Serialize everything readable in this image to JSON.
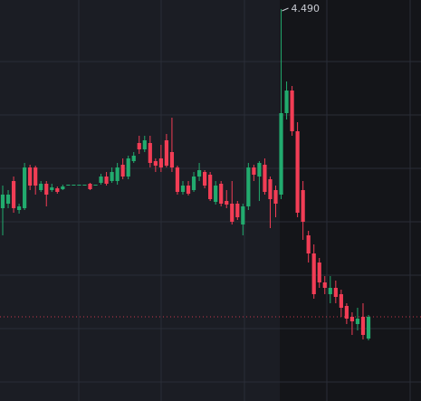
{
  "chart_data": {
    "type": "candlestick",
    "up_color": "#22ab6e",
    "down_color": "#f23d55",
    "ylim": [
      2.325,
      4.54
    ],
    "high_label": "4.490",
    "open": [
      3.39,
      3.415,
      3.54,
      3.38,
      3.39,
      3.615,
      3.615,
      3.49,
      3.525,
      3.49,
      3.5,
      3.495,
      3.52,
      3.52,
      3.52,
      3.52,
      3.525,
      3.52,
      3.53,
      3.565,
      3.54,
      3.54,
      3.63,
      3.565,
      3.65,
      3.75,
      3.715,
      3.75,
      3.65,
      3.665,
      3.765,
      3.7,
      3.615,
      3.48,
      3.515,
      3.49,
      3.565,
      3.59,
      3.575,
      3.425,
      3.525,
      3.43,
      3.415,
      3.415,
      3.3,
      3.4,
      3.615,
      3.565,
      3.63,
      3.55,
      3.49,
      3.465,
      3.915,
      4.04,
      3.815,
      3.49,
      3.24,
      3.14,
      3.09,
      2.98,
      2.915,
      2.95,
      2.915,
      2.85,
      2.79,
      2.75,
      2.79,
      2.67
    ],
    "high": [
      3.515,
      3.49,
      3.565,
      3.415,
      3.64,
      3.63,
      3.625,
      3.54,
      3.54,
      3.525,
      3.51,
      3.52,
      3.52,
      3.52,
      3.52,
      3.52,
      3.53,
      3.52,
      3.58,
      3.59,
      3.615,
      3.64,
      3.665,
      3.68,
      3.7,
      3.79,
      3.79,
      3.79,
      3.665,
      3.74,
      3.8,
      3.89,
      3.625,
      3.54,
      3.54,
      3.59,
      3.64,
      3.6,
      3.59,
      3.54,
      3.54,
      3.49,
      3.54,
      3.43,
      3.415,
      3.64,
      3.63,
      3.65,
      3.665,
      3.565,
      3.515,
      4.49,
      4.09,
      4.065,
      3.865,
      3.54,
      3.265,
      3.19,
      3.115,
      3.015,
      3.015,
      2.99,
      2.94,
      2.865,
      2.815,
      2.84,
      2.865,
      2.8
    ],
    "low": [
      3.24,
      3.39,
      3.365,
      3.36,
      3.38,
      3.49,
      3.465,
      3.48,
      3.4,
      3.48,
      3.47,
      3.49,
      3.52,
      3.52,
      3.52,
      3.52,
      3.49,
      3.52,
      3.52,
      3.515,
      3.53,
      3.52,
      3.55,
      3.55,
      3.64,
      3.69,
      3.7,
      3.615,
      3.59,
      3.59,
      3.615,
      3.59,
      3.465,
      3.465,
      3.46,
      3.48,
      3.54,
      3.5,
      3.43,
      3.41,
      3.4,
      3.39,
      3.3,
      3.325,
      3.24,
      3.38,
      3.54,
      3.43,
      3.465,
      3.28,
      3.34,
      3.44,
      3.88,
      3.79,
      3.34,
      3.215,
      3.09,
      2.89,
      2.95,
      2.915,
      2.865,
      2.865,
      2.79,
      2.75,
      2.69,
      2.715,
      2.665,
      2.66
    ],
    "close": [
      3.465,
      3.465,
      3.39,
      3.4,
      3.615,
      3.515,
      3.515,
      3.525,
      3.465,
      3.505,
      3.48,
      3.51,
      3.52,
      3.52,
      3.52,
      3.52,
      3.495,
      3.52,
      3.565,
      3.525,
      3.59,
      3.615,
      3.565,
      3.665,
      3.68,
      3.715,
      3.765,
      3.64,
      3.625,
      3.615,
      3.625,
      3.615,
      3.48,
      3.515,
      3.47,
      3.565,
      3.6,
      3.515,
      3.44,
      3.515,
      3.415,
      3.41,
      3.315,
      3.34,
      3.4,
      3.615,
      3.575,
      3.64,
      3.48,
      3.44,
      3.415,
      3.915,
      4.04,
      3.815,
      3.365,
      3.315,
      3.14,
      2.915,
      2.98,
      2.95,
      2.95,
      2.9,
      2.84,
      2.78,
      2.765,
      2.78,
      2.69,
      2.79
    ]
  }
}
